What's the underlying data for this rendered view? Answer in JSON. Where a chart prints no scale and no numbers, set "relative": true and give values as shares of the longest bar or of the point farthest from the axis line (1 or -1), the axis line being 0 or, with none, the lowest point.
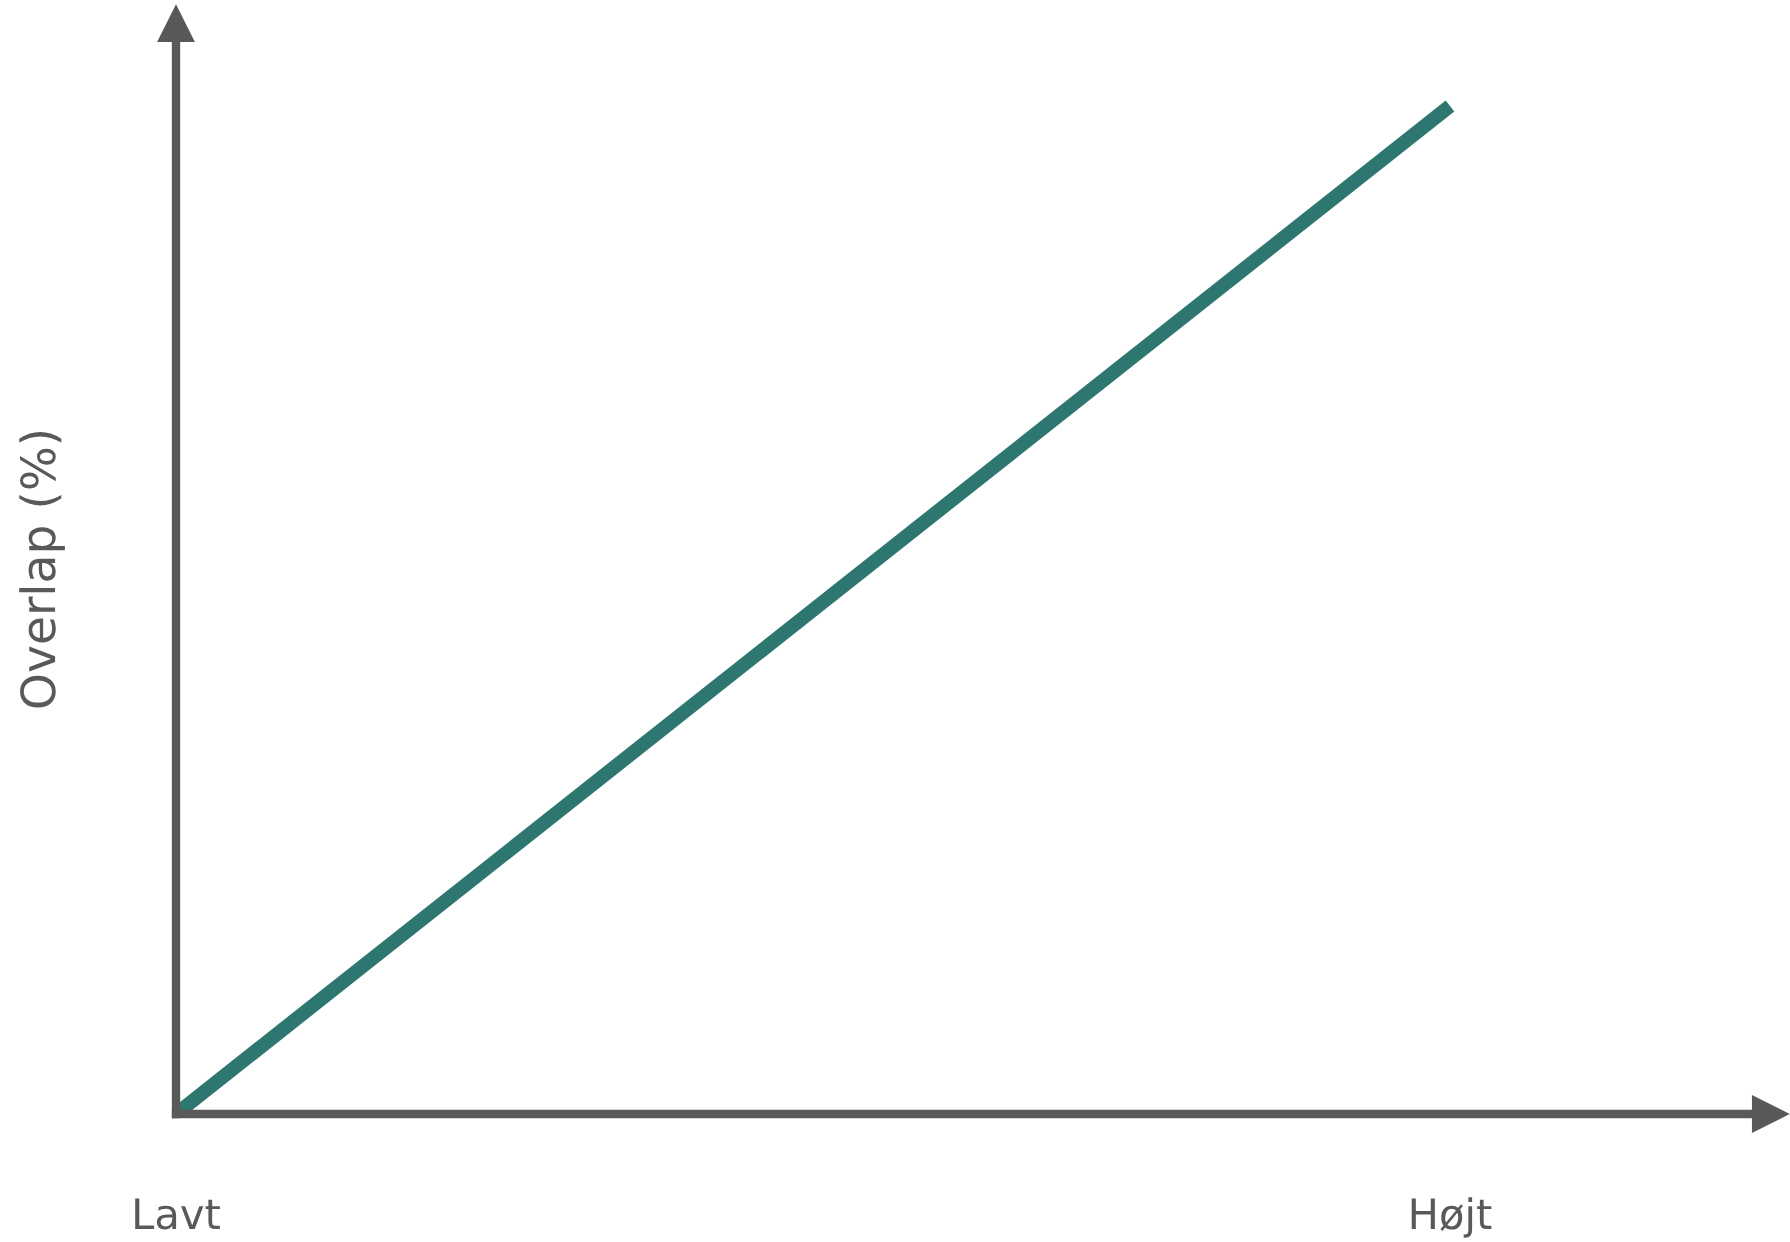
{
  "chart_data": {
    "type": "line",
    "ylabel": "Overlap (%)",
    "categories": [
      "Lavt",
      "Højt"
    ],
    "relative": true,
    "grid": false,
    "legend": false,
    "marker": "none",
    "line_style": "solid",
    "series": [
      {
        "color": "#2e7670",
        "values": [
          0,
          1
        ]
      }
    ]
  }
}
